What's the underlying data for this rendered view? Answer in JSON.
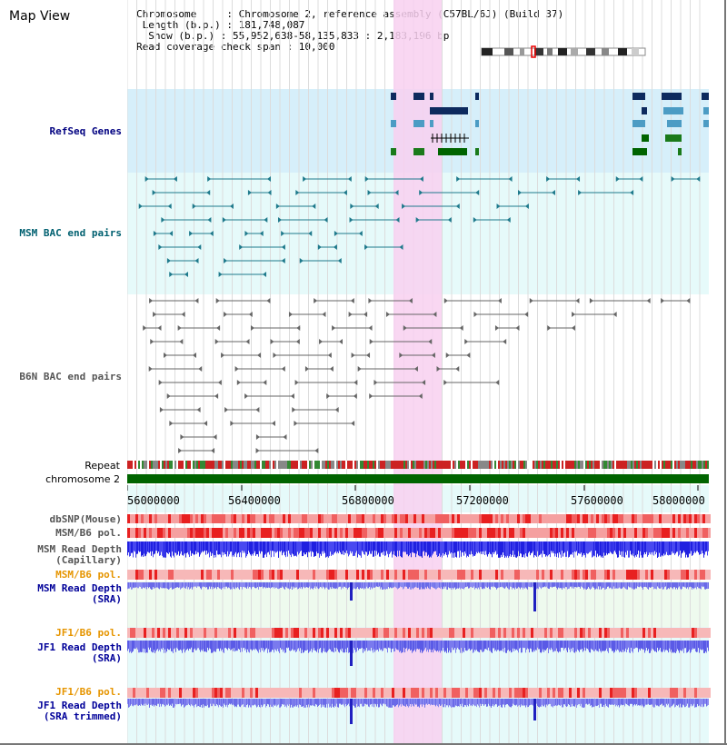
{
  "title": "Map View",
  "info": {
    "chromosome": "Chromosome     : Chromosome 2, reference assembly (C57BL/6J) (Build 37)",
    "length": "Length (b.p.) : 181,748,087",
    "show": "Show (b.p.) : 55,952,638-58,135,833 : 2,183,196 bp",
    "span": "Read coverage check span : 10,000"
  },
  "tracks": {
    "refseq": "RefSeq Genes",
    "msm_bac": "MSM BAC end pairs",
    "b6n_bac": "B6N BAC end pairs",
    "repeat": "Repeat",
    "chromosome": "chromosome 2",
    "dbsnp": "dbSNP(Mouse)",
    "msm_b6_pol_1": "MSM/B6 pol.",
    "msm_depth_cap_1": "MSM Read Depth",
    "msm_depth_cap_2": "(Capillary)",
    "msm_b6_pol_2": "MSM/B6 pol.",
    "msm_depth_sra_1": "MSM Read Depth",
    "msm_depth_sra_2": "(SRA)",
    "jf1_b6_pol_1": "JF1/B6 pol.",
    "jf1_depth_sra_1": "JF1 Read Depth",
    "jf1_depth_sra_2": "(SRA)",
    "jf1_b6_pol_2": "JF1/B6 pol.",
    "jf1_depth_trim_1": "JF1 Read Depth",
    "jf1_depth_trim_2": "(SRA trimmed)"
  },
  "axis": {
    "ticks": [
      "56000000",
      "56400000",
      "56800000",
      "57200000",
      "57600000",
      "58000000"
    ]
  },
  "colors": {
    "refseq_label": "#000080",
    "msm_bac_label": "#006070",
    "b6n_bac_label": "#555555",
    "pol_orange": "#e69500",
    "depth_blue": "#000099",
    "highlight": "#f8d0f0",
    "chrom_green": "#006400"
  }
}
